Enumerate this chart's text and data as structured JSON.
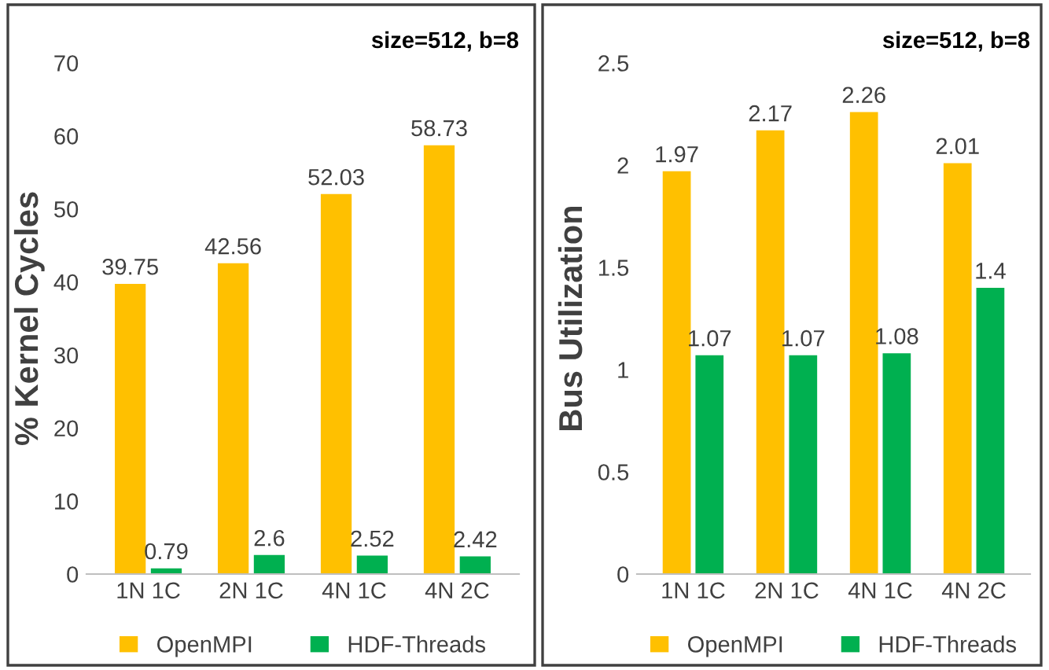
{
  "chart_data": [
    {
      "type": "bar",
      "ylabel": "% Kernel Cycles",
      "categories": [
        "1N 1C",
        "2N 1C",
        "4N 1C",
        "4N 2C"
      ],
      "series": [
        {
          "name": "OpenMPI",
          "color": "#ffc000",
          "values": [
            39.75,
            42.56,
            52.03,
            58.73
          ]
        },
        {
          "name": "HDF-Threads",
          "color": "#00b050",
          "values": [
            0.79,
            2.6,
            2.52,
            2.42
          ]
        }
      ],
      "ylim": [
        0,
        70
      ],
      "yticks": [
        0,
        10,
        20,
        30,
        40,
        50,
        60,
        70
      ],
      "data_labels": true,
      "legend": "bottom",
      "grid": false,
      "annotations": [
        "size=512, b=8"
      ]
    },
    {
      "type": "bar",
      "ylabel": "Bus Utilization",
      "categories": [
        "1N 1C",
        "2N 1C",
        "4N 1C",
        "4N 2C"
      ],
      "series": [
        {
          "name": "OpenMPI",
          "color": "#ffc000",
          "values": [
            1.97,
            2.17,
            2.26,
            2.01
          ]
        },
        {
          "name": "HDF-Threads",
          "color": "#00b050",
          "values": [
            1.07,
            1.07,
            1.08,
            1.4
          ]
        }
      ],
      "ylim": [
        0,
        2.5
      ],
      "yticks": [
        0,
        0.5,
        1,
        1.5,
        2,
        2.5
      ],
      "data_labels": true,
      "legend": "bottom",
      "grid": false,
      "annotations": [
        "size=512, b=8"
      ]
    }
  ]
}
